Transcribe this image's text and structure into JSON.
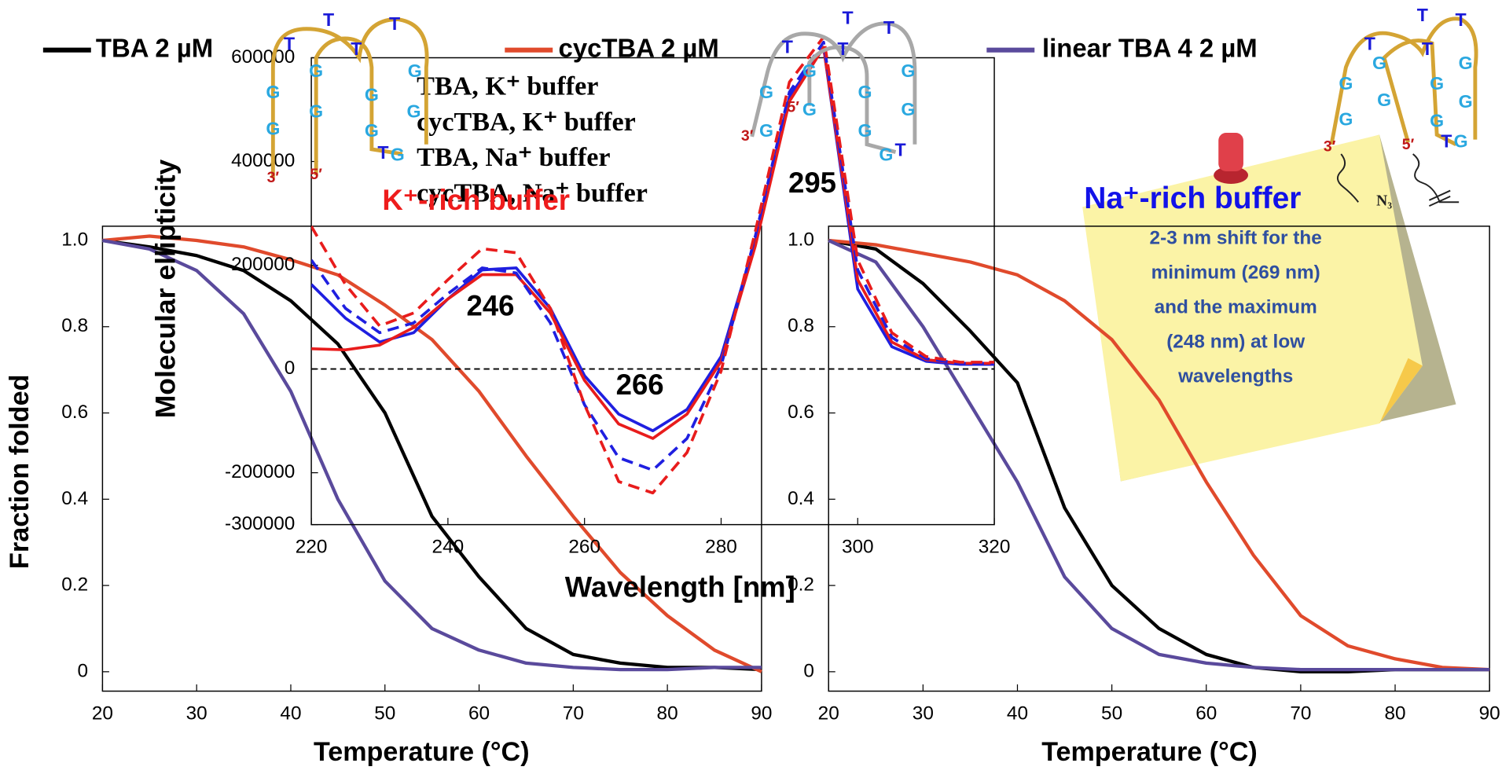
{
  "chart_data": [
    {
      "type": "line",
      "y_label": "Fraction folded",
      "x_label": "Temperature (°C)",
      "x": [
        20,
        25,
        30,
        35,
        40,
        45,
        50,
        55,
        60,
        65,
        70,
        75,
        80,
        85,
        90
      ],
      "xlim": [
        20,
        90
      ],
      "xticks": [
        20,
        30,
        40,
        50,
        60,
        70,
        80,
        90
      ],
      "ylim": [
        -0.045,
        1.033
      ],
      "yticks": [
        0,
        0.2,
        0.4,
        0.6,
        0.8,
        {
          "value": 1,
          "label": "1.0"
        }
      ],
      "series": [
        {
          "name": "TBA 2 µM",
          "color": "#000000",
          "values": [
            1.0,
            0.985,
            0.965,
            0.93,
            0.86,
            0.76,
            0.6,
            0.36,
            0.22,
            0.1,
            0.04,
            0.02,
            0.01,
            0.01,
            0.005
          ]
        },
        {
          "name": "cycTBA 2 µM",
          "color": "#e04a2c",
          "values": [
            1.0,
            1.01,
            1.0,
            0.985,
            0.955,
            0.92,
            0.85,
            0.77,
            0.65,
            0.5,
            0.36,
            0.23,
            0.13,
            0.05,
            0.0
          ]
        },
        {
          "name": "linear TBA 4 2 µM",
          "color": "#5a4a9c",
          "values": [
            1.0,
            0.98,
            0.93,
            0.83,
            0.65,
            0.4,
            0.21,
            0.1,
            0.05,
            0.02,
            0.01,
            0.005,
            0.005,
            0.01,
            0.01
          ]
        }
      ]
    },
    {
      "type": "line",
      "x_label": "Temperature (°C)",
      "x": [
        20,
        25,
        30,
        35,
        40,
        45,
        50,
        55,
        60,
        65,
        70,
        75,
        80,
        85,
        90
      ],
      "xlim": [
        20,
        90
      ],
      "xticks": [
        20,
        30,
        40,
        50,
        60,
        70,
        80,
        90
      ],
      "ylim": [
        -0.045,
        1.033
      ],
      "yticks": [
        0,
        0.2,
        0.4,
        0.6,
        0.8,
        {
          "value": 1,
          "label": "1.0"
        }
      ],
      "series": [
        {
          "color": "#000000",
          "values": [
            1.0,
            0.98,
            0.9,
            0.79,
            0.67,
            0.38,
            0.2,
            0.1,
            0.04,
            0.01,
            0.0,
            0.0,
            0.005,
            0.005,
            0.005
          ]
        },
        {
          "color": "#e04a2c",
          "values": [
            1.0,
            0.99,
            0.97,
            0.95,
            0.92,
            0.86,
            0.77,
            0.63,
            0.44,
            0.27,
            0.13,
            0.06,
            0.03,
            0.01,
            0.005
          ]
        },
        {
          "color": "#5a4a9c",
          "values": [
            1.0,
            0.95,
            0.8,
            0.62,
            0.44,
            0.22,
            0.1,
            0.04,
            0.02,
            0.01,
            0.005,
            0.005,
            0.005,
            0.005,
            0.005
          ]
        }
      ]
    },
    {
      "type": "line",
      "y_label": "Molecular ellipticity",
      "x_label": "Wavelength [nm]",
      "x": [
        220,
        225,
        230,
        235,
        240,
        245,
        250,
        255,
        260,
        265,
        270,
        275,
        280,
        285,
        290,
        295,
        300,
        305,
        310,
        315,
        320
      ],
      "xlim": [
        220,
        320
      ],
      "xticks": [
        220,
        240,
        260,
        280,
        300,
        320
      ],
      "ylim": [
        -300000,
        600000
      ],
      "yticks": [
        -300000,
        -200000,
        0,
        200000,
        400000,
        600000
      ],
      "zero_line": true,
      "series": [
        {
          "name": "TBA, K⁺ buffer",
          "color": "#1f1fe0",
          "dash": false,
          "values": [
            163000,
            98000,
            52000,
            70000,
            135000,
            191000,
            195000,
            117000,
            -13000,
            -87000,
            -119000,
            -78000,
            24000,
            247000,
            525000,
            620000,
            154000,
            43000,
            15000,
            9000,
            9000
          ]
        },
        {
          "name": "cycTBA, K⁺ buffer",
          "color": "#e81c1c",
          "dash": false,
          "values": [
            39000,
            37000,
            46000,
            80000,
            135000,
            182000,
            182000,
            108000,
            -22000,
            -106000,
            -134000,
            -87000,
            15000,
            237000,
            516000,
            620000,
            172000,
            52000,
            18000,
            11000,
            11000
          ]
        },
        {
          "name": "TBA, Na⁺ buffer",
          "color": "#1f1fe0",
          "dash": true,
          "values": [
            210000,
            117000,
            70000,
            89000,
            145000,
            195000,
            185000,
            89000,
            -69000,
            -171000,
            -195000,
            -134000,
            6000,
            256000,
            534000,
            630000,
            191000,
            61000,
            20000,
            11000,
            11000
          ]
        },
        {
          "name": "cycTBA, Na⁺ buffer",
          "color": "#e81c1c",
          "dash": true,
          "values": [
            275000,
            163000,
            83000,
            108000,
            172000,
            232000,
            224000,
            117000,
            -69000,
            -217000,
            -239000,
            -161000,
            -4000,
            265000,
            553000,
            640000,
            210000,
            70000,
            24000,
            13000,
            13000
          ]
        }
      ],
      "annotations": [
        "246",
        "266",
        "295"
      ]
    }
  ],
  "labels": {
    "k_buffer": "K⁺-rich buffer",
    "na_buffer": "Na⁺-rich buffer"
  },
  "note": [
    "2-3 nm shift for the",
    "minimum (269 nm)",
    "and the maximum",
    "(248 nm) at low",
    "wavelengths"
  ],
  "structures": [
    [
      "T",
      "T",
      "T",
      "T",
      "G",
      "G",
      "G",
      "G",
      "G",
      "G",
      "G",
      "G",
      "T",
      "G",
      "3′",
      "5′"
    ],
    [
      "T",
      "T",
      "T",
      "T",
      "G",
      "G",
      "G",
      "G",
      "G",
      "G",
      "G",
      "G",
      "T",
      "G",
      "5′",
      "3′"
    ],
    [
      "T",
      "T",
      "T",
      "T",
      "G",
      "G",
      "G",
      "G",
      "G",
      "G",
      "G",
      "G",
      "T",
      "G",
      "3′",
      "5′",
      "N₃"
    ]
  ]
}
